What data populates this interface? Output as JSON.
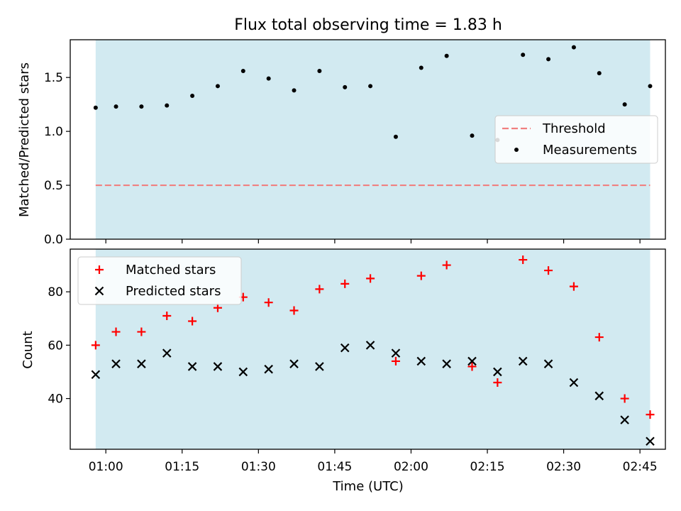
{
  "chart_data": [
    {
      "type": "scatter",
      "title": "Flux total observing time = 1.83 h",
      "xlabel": "",
      "ylabel": "Matched/Predicted stars",
      "ylim": [
        0,
        1.85
      ],
      "yticks": [
        0.0,
        0.5,
        1.0,
        1.5
      ],
      "ytick_labels": [
        "0.0",
        "0.5",
        "1.0",
        "1.5"
      ],
      "xlim": [
        "00:53",
        "02:50"
      ],
      "shaded_span": [
        "00:58",
        "02:47"
      ],
      "shade_color": "#add8e6",
      "grid": false,
      "legend_position": "center-right",
      "threshold": {
        "name": "Threshold",
        "value": 0.5,
        "x_range": [
          "00:58",
          "02:47"
        ],
        "color": "#f08080",
        "style": "dashed"
      },
      "series": [
        {
          "name": "Measurements",
          "marker": "dot",
          "color": "#000000",
          "x": [
            "00:58",
            "01:02",
            "01:07",
            "01:12",
            "01:17",
            "01:22",
            "01:27",
            "01:32",
            "01:37",
            "01:42",
            "01:47",
            "01:52",
            "01:57",
            "02:02",
            "02:07",
            "02:12",
            "02:17",
            "02:22",
            "02:27",
            "02:32",
            "02:37",
            "02:42",
            "02:47"
          ],
          "values": [
            1.22,
            1.23,
            1.23,
            1.24,
            1.33,
            1.42,
            1.56,
            1.49,
            1.38,
            1.56,
            1.41,
            1.42,
            0.95,
            1.59,
            1.7,
            0.96,
            0.92,
            1.71,
            1.67,
            1.78,
            1.54,
            1.25,
            1.42
          ]
        }
      ]
    },
    {
      "type": "scatter",
      "title": "",
      "xlabel": "Time (UTC)",
      "ylabel": "Count",
      "ylim": [
        21,
        96
      ],
      "yticks": [
        40,
        60,
        80
      ],
      "ytick_labels": [
        "40",
        "60",
        "80"
      ],
      "xlim": [
        "00:53",
        "02:50"
      ],
      "xticks": [
        "01:00",
        "01:15",
        "01:30",
        "01:45",
        "02:00",
        "02:15",
        "02:30",
        "02:45"
      ],
      "shaded_span": [
        "00:58",
        "02:47"
      ],
      "shade_color": "#add8e6",
      "grid": false,
      "legend_position": "top-left",
      "series": [
        {
          "name": "Matched stars",
          "marker": "plus",
          "color": "#ff0000",
          "x": [
            "00:58",
            "01:02",
            "01:07",
            "01:12",
            "01:17",
            "01:22",
            "01:27",
            "01:32",
            "01:37",
            "01:42",
            "01:47",
            "01:52",
            "01:57",
            "02:02",
            "02:07",
            "02:12",
            "02:17",
            "02:22",
            "02:27",
            "02:32",
            "02:37",
            "02:42",
            "02:47"
          ],
          "values": [
            60,
            65,
            65,
            71,
            69,
            74,
            78,
            76,
            73,
            81,
            83,
            85,
            54,
            86,
            90,
            52,
            46,
            92,
            88,
            82,
            63,
            40,
            34
          ]
        },
        {
          "name": "Predicted stars",
          "marker": "x",
          "color": "#000000",
          "x": [
            "00:58",
            "01:02",
            "01:07",
            "01:12",
            "01:17",
            "01:22",
            "01:27",
            "01:32",
            "01:37",
            "01:42",
            "01:47",
            "01:52",
            "01:57",
            "02:02",
            "02:07",
            "02:12",
            "02:17",
            "02:22",
            "02:27",
            "02:32",
            "02:37",
            "02:42",
            "02:47"
          ],
          "values": [
            49,
            53,
            53,
            57,
            52,
            52,
            50,
            51,
            53,
            52,
            59,
            60,
            57,
            54,
            53,
            54,
            50,
            54,
            53,
            46,
            41,
            32,
            24
          ]
        }
      ]
    }
  ]
}
